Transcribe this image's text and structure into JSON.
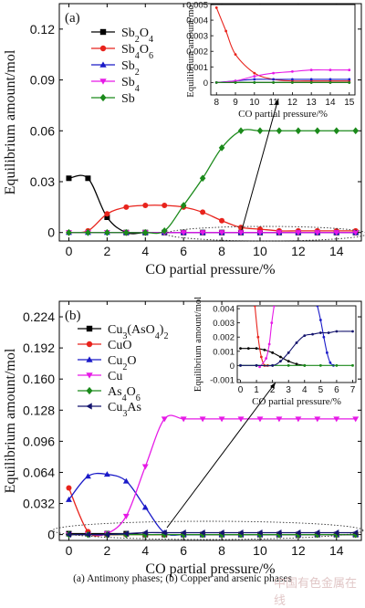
{
  "caption": "(a) Antimony phases; (b) Copper and arsenic phases",
  "watermark": "中国有色金属在线",
  "chart_data": [
    {
      "id": "a",
      "type": "line",
      "panel_label": "(a)",
      "xlabel": "CO partial pressure/%",
      "ylabel": "Equilibrium amount/mol",
      "xlim": [
        -0.5,
        15.3
      ],
      "ylim": [
        -0.005,
        0.135
      ],
      "xticks": [
        0,
        2,
        4,
        6,
        8,
        10,
        12,
        14
      ],
      "yticks": [
        0,
        0.03,
        0.06,
        0.09,
        0.12
      ],
      "ytick_labels": [
        "0",
        "0.03",
        "0.06",
        "0.09",
        "0.12"
      ],
      "legend_position": "top-left",
      "colors": {
        "Sb2O4": "#000000",
        "Sb4O6": "#e8231c",
        "Sb2": "#1a1ac8",
        "Sb4": "#e619e6",
        "Sb": "#1b8a1b"
      },
      "series": [
        {
          "key": "Sb2O4",
          "name": "Sb2O4",
          "color": "#000000",
          "marker": "square",
          "x": [
            0,
            1,
            2,
            3,
            4,
            5,
            6,
            7,
            8,
            9,
            10,
            11,
            12,
            13,
            14,
            15
          ],
          "y": [
            0.032,
            0.032,
            0.009,
            0,
            0,
            0,
            0,
            0,
            0,
            0,
            0,
            0,
            0,
            0,
            0,
            0
          ]
        },
        {
          "key": "Sb4O6",
          "name": "Sb4O6",
          "color": "#e8231c",
          "marker": "circle",
          "x": [
            0,
            1,
            2,
            3,
            4,
            5,
            6,
            7,
            8,
            9,
            10,
            11,
            12,
            13,
            14,
            15
          ],
          "y": [
            0,
            0.001,
            0.011,
            0.015,
            0.016,
            0.016,
            0.015,
            0.012,
            0.007,
            0.003,
            0.002,
            0.001,
            0.001,
            0.001,
            0.001,
            0.001
          ]
        },
        {
          "key": "Sb2",
          "name": "Sb2",
          "color": "#1a1ac8",
          "marker": "triangle",
          "x": [
            0,
            1,
            2,
            3,
            4,
            5,
            6,
            7,
            8,
            9,
            10,
            11,
            12,
            13,
            14,
            15
          ],
          "y": [
            0,
            0,
            0,
            0,
            0,
            0,
            0,
            0,
            0,
            0,
            0,
            0,
            0,
            0,
            0,
            0
          ]
        },
        {
          "key": "Sb4",
          "name": "Sb4",
          "color": "#e619e6",
          "marker": "triangle-down",
          "x": [
            0,
            1,
            2,
            3,
            4,
            5,
            6,
            7,
            8,
            9,
            10,
            11,
            12,
            13,
            14,
            15
          ],
          "y": [
            0,
            0,
            0,
            0,
            0,
            0,
            0,
            0,
            0,
            0,
            0,
            0,
            0,
            0,
            0,
            0
          ]
        },
        {
          "key": "Sb",
          "name": "Sb",
          "color": "#1b8a1b",
          "marker": "diamond",
          "x": [
            0,
            1,
            2,
            3,
            4,
            5,
            6,
            7,
            8,
            9,
            10,
            11,
            12,
            13,
            14,
            15
          ],
          "y": [
            0,
            0,
            0,
            0,
            0,
            0.001,
            0.016,
            0.032,
            0.05,
            0.06,
            0.06,
            0.06,
            0.06,
            0.06,
            0.06,
            0.06
          ]
        }
      ],
      "inset": {
        "xlabel": "CO partial pressure/%",
        "ylabel": "Equilibrium amount/mol",
        "xlim": [
          7.7,
          15.3
        ],
        "ylim": [
          -0.0008,
          0.005
        ],
        "xticks": [
          8,
          9,
          10,
          11,
          12,
          13,
          14,
          15
        ],
        "yticks": [
          0,
          0.001,
          0.002,
          0.003,
          0.004,
          0.005
        ],
        "ytick_labels": [
          "0",
          "0.001",
          "0.002",
          "0.003",
          "0.004",
          "0.005"
        ],
        "series": [
          {
            "key": "Sb2O4",
            "color": "#000000",
            "x": [
              8,
              9,
              10,
              11,
              12,
              13,
              14,
              15
            ],
            "y": [
              0,
              0,
              0,
              0,
              0,
              0,
              0,
              0
            ]
          },
          {
            "key": "Sb4O6",
            "color": "#e8231c",
            "x": [
              8,
              8.5,
              9,
              10,
              11,
              12,
              13,
              14,
              15
            ],
            "y": [
              0.0048,
              0.0033,
              0.0018,
              0.0006,
              0.0002,
              0.0001,
              0.0001,
              0.0001,
              0.0001
            ]
          },
          {
            "key": "Sb2",
            "color": "#1a1ac8",
            "x": [
              8,
              9,
              10,
              11,
              12,
              13,
              14,
              15
            ],
            "y": [
              0,
              0.0001,
              0.0002,
              0.0002,
              0.0002,
              0.0002,
              0.0002,
              0.0002
            ]
          },
          {
            "key": "Sb4",
            "color": "#e619e6",
            "x": [
              8,
              9,
              10,
              11,
              12,
              13,
              14,
              15
            ],
            "y": [
              0,
              0.0001,
              0.0004,
              0.0006,
              0.0007,
              0.0008,
              0.0008,
              0.0008
            ]
          },
          {
            "key": "Sb",
            "color": "#1b8a1b",
            "x": [
              8,
              9,
              10,
              11,
              12,
              13,
              14,
              15
            ],
            "y": [
              0,
              0,
              0,
              0,
              0,
              0,
              0,
              0
            ]
          }
        ]
      }
    },
    {
      "id": "b",
      "type": "line",
      "panel_label": "(b)",
      "xlabel": "CO partial pressure/%",
      "ylabel": "Equilibrium amount/mol",
      "xlim": [
        -0.5,
        15.3
      ],
      "ylim": [
        -0.006,
        0.24
      ],
      "xticks": [
        0,
        2,
        4,
        6,
        8,
        10,
        12,
        14
      ],
      "yticks": [
        0,
        0.032,
        0.064,
        0.096,
        0.128,
        0.16,
        0.192,
        0.224
      ],
      "ytick_labels": [
        "0",
        "0.032",
        "0.064",
        "0.096",
        "0.128",
        "0.160",
        "0.192",
        "0.224"
      ],
      "legend_position": "top-left",
      "colors": {
        "Cu3AsO42": "#000000",
        "CuO": "#e8231c",
        "Cu2O": "#1a1ac8",
        "Cu": "#e619e6",
        "As4O6": "#1b8a1b",
        "Cu3As": "#14146e"
      },
      "series": [
        {
          "key": "Cu3AsO42",
          "name": "Cu3(AsO4)2",
          "color": "#000000",
          "marker": "square",
          "x": [
            0,
            1,
            2,
            3,
            4,
            5,
            6,
            7,
            8,
            9,
            10,
            11,
            12,
            13,
            14,
            15
          ],
          "y": [
            0.001,
            0.001,
            0.001,
            0.001,
            0,
            0,
            0,
            0,
            0,
            0,
            0,
            0,
            0,
            0,
            0,
            0
          ]
        },
        {
          "key": "CuO",
          "name": "CuO",
          "color": "#e8231c",
          "marker": "circle",
          "x": [
            0,
            1,
            2,
            3,
            4,
            5,
            6,
            7,
            8,
            9,
            10,
            11,
            12,
            13,
            14,
            15
          ],
          "y": [
            0.048,
            0.003,
            0,
            0,
            0,
            0,
            0,
            0,
            0,
            0,
            0,
            0,
            0,
            0,
            0,
            0
          ]
        },
        {
          "key": "Cu2O",
          "name": "Cu2O",
          "color": "#1a1ac8",
          "marker": "triangle",
          "x": [
            0,
            1,
            2,
            3,
            4,
            5,
            6,
            7,
            8,
            9,
            10,
            11,
            12,
            13,
            14,
            15
          ],
          "y": [
            0.036,
            0.06,
            0.062,
            0.055,
            0.028,
            0.002,
            0,
            0,
            0,
            0,
            0,
            0,
            0,
            0,
            0,
            0
          ]
        },
        {
          "key": "Cu",
          "name": "Cu",
          "color": "#e619e6",
          "marker": "triangle-down",
          "x": [
            0,
            1,
            2,
            3,
            4,
            5,
            6,
            7,
            8,
            9,
            10,
            11,
            12,
            13,
            14,
            15
          ],
          "y": [
            0,
            0,
            0.001,
            0.019,
            0.07,
            0.119,
            0.119,
            0.119,
            0.119,
            0.119,
            0.119,
            0.119,
            0.119,
            0.119,
            0.119,
            0.119
          ]
        },
        {
          "key": "As4O6",
          "name": "As4O6",
          "color": "#1b8a1b",
          "marker": "diamond",
          "x": [
            0,
            1,
            2,
            3,
            4,
            5,
            6,
            7,
            8,
            9,
            10,
            11,
            12,
            13,
            14,
            15
          ],
          "y": [
            0,
            0,
            0,
            0,
            0,
            0,
            0,
            0,
            0,
            0,
            0,
            0,
            0,
            0,
            0,
            0
          ]
        },
        {
          "key": "Cu3As",
          "name": "Cu3As",
          "color": "#14146e",
          "marker": "triangle-left",
          "x": [
            0,
            1,
            2,
            3,
            4,
            5,
            6,
            7,
            8,
            9,
            10,
            11,
            12,
            13,
            14,
            15
          ],
          "y": [
            0,
            0,
            0,
            0.001,
            0.002,
            0.002,
            0.002,
            0.002,
            0.002,
            0.002,
            0.002,
            0.002,
            0.002,
            0.002,
            0.002,
            0.002
          ]
        }
      ],
      "inset": {
        "xlabel": "CO partial pressure/%",
        "ylabel": "Equilibrium amount/mol",
        "xlim": [
          -0.2,
          7.2
        ],
        "ylim": [
          -0.0012,
          0.0042
        ],
        "xticks": [
          0,
          1,
          2,
          3,
          4,
          5,
          6,
          7
        ],
        "yticks": [
          -0.001,
          0,
          0.001,
          0.002,
          0.003,
          0.004
        ],
        "ytick_labels": [
          "-0.001",
          "0",
          "0.001",
          "0.002",
          "0.003",
          "0.004"
        ],
        "series": [
          {
            "key": "Cu3AsO42",
            "color": "#000000",
            "x": [
              0,
              0.5,
              1,
              1.5,
              2,
              2.5,
              3,
              3.5,
              4
            ],
            "y": [
              0.0012,
              0.0012,
              0.0012,
              0.0011,
              0.0009,
              0.0006,
              0.0003,
              0.0001,
              0
            ]
          },
          {
            "key": "CuO",
            "color": "#e8231c",
            "x": [
              0.9,
              1.1,
              1.3,
              1.5,
              1.7
            ],
            "y": [
              0.0042,
              0.002,
              0.0006,
              0,
              0
            ]
          },
          {
            "key": "Cu2O",
            "color": "#1a1ac8",
            "x": [
              4.8,
              5.0,
              5.2,
              5.4,
              5.6,
              5.8
            ],
            "y": [
              0.0042,
              0.0032,
              0.002,
              0.0009,
              0.0002,
              0
            ]
          },
          {
            "key": "Cu",
            "color": "#e619e6",
            "x": [
              1.2,
              1.6,
              1.8,
              1.95,
              2.1
            ],
            "y": [
              -0.0001,
              0.0005,
              0.0015,
              0.003,
              0.0042
            ]
          },
          {
            "key": "As4O6",
            "color": "#1b8a1b",
            "x": [
              0,
              1,
              2,
              3,
              4,
              5,
              6,
              7
            ],
            "y": [
              0,
              0,
              0,
              0,
              0,
              0,
              0,
              0
            ]
          },
          {
            "key": "Cu3As",
            "color": "#14146e",
            "x": [
              0,
              1,
              2,
              2.5,
              3,
              3.5,
              4,
              4.5,
              5,
              5.5,
              6,
              7
            ],
            "y": [
              0,
              0,
              0,
              0.0003,
              0.0009,
              0.0016,
              0.0021,
              0.0022,
              0.0023,
              0.0023,
              0.0024,
              0.0024
            ]
          }
        ]
      }
    }
  ]
}
